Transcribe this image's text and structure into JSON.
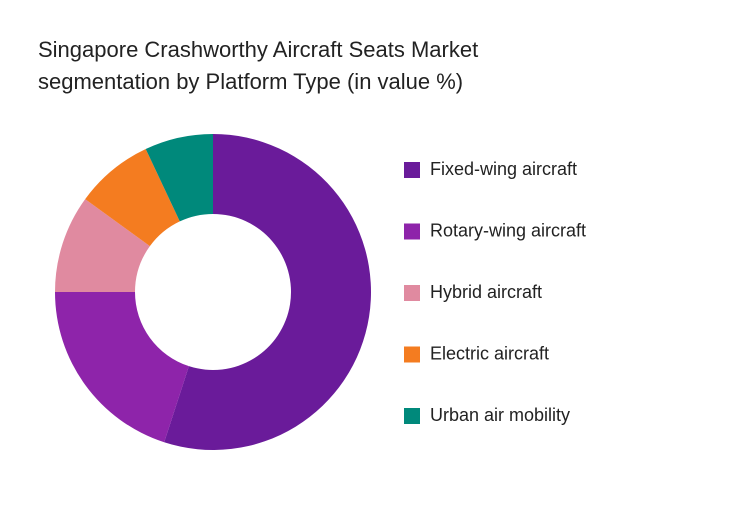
{
  "chart_data": {
    "type": "donut",
    "title": "Singapore Crashworthy Aircraft Seats Market segmentation by Platform Type (in value %)",
    "categories": [
      "Fixed-wing aircraft",
      "Rotary-wing aircraft",
      "Hybrid aircraft",
      "Electric aircraft",
      "Urban air mobility"
    ],
    "values": [
      55,
      20,
      10,
      8,
      7
    ],
    "colors": [
      "#6a1b9a",
      "#8e24aa",
      "#e08aa0",
      "#f47c20",
      "#00897b"
    ],
    "legend": "right"
  }
}
